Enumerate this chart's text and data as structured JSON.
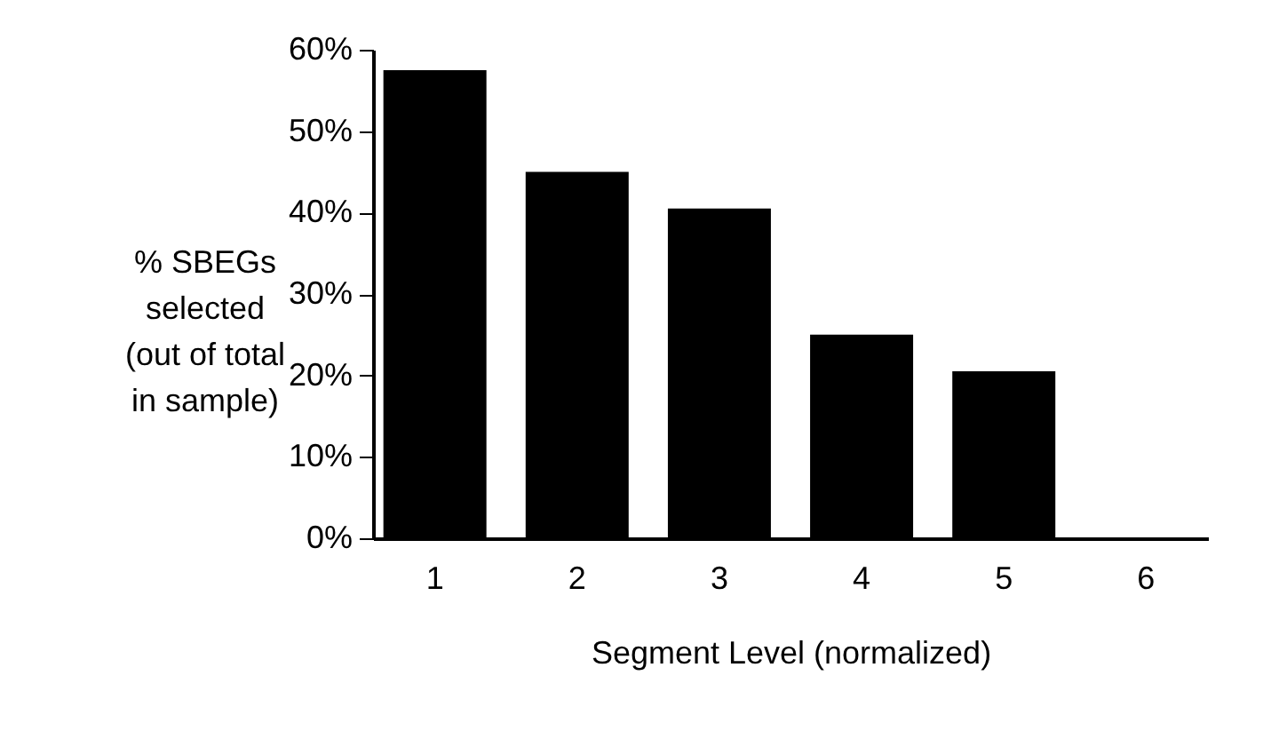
{
  "chart_data": {
    "type": "bar",
    "xlabel": "Segment Level (normalized)",
    "ylabel": "% SBEGs selected (out of total in sample)",
    "categories": [
      "1",
      "2",
      "3",
      "4",
      "5",
      "6"
    ],
    "values": [
      57.5,
      45,
      40.5,
      25,
      20.5,
      0
    ],
    "color": "#000000",
    "ylim": [
      0,
      60
    ],
    "yticks": [
      {
        "value": 0,
        "label": "0%"
      },
      {
        "value": 10,
        "label": "10%"
      },
      {
        "value": 20,
        "label": "20%"
      },
      {
        "value": 30,
        "label": "30%"
      },
      {
        "value": 40,
        "label": "40%"
      },
      {
        "value": 50,
        "label": "50%"
      },
      {
        "value": 60,
        "label": "60%"
      }
    ],
    "grid": false
  }
}
